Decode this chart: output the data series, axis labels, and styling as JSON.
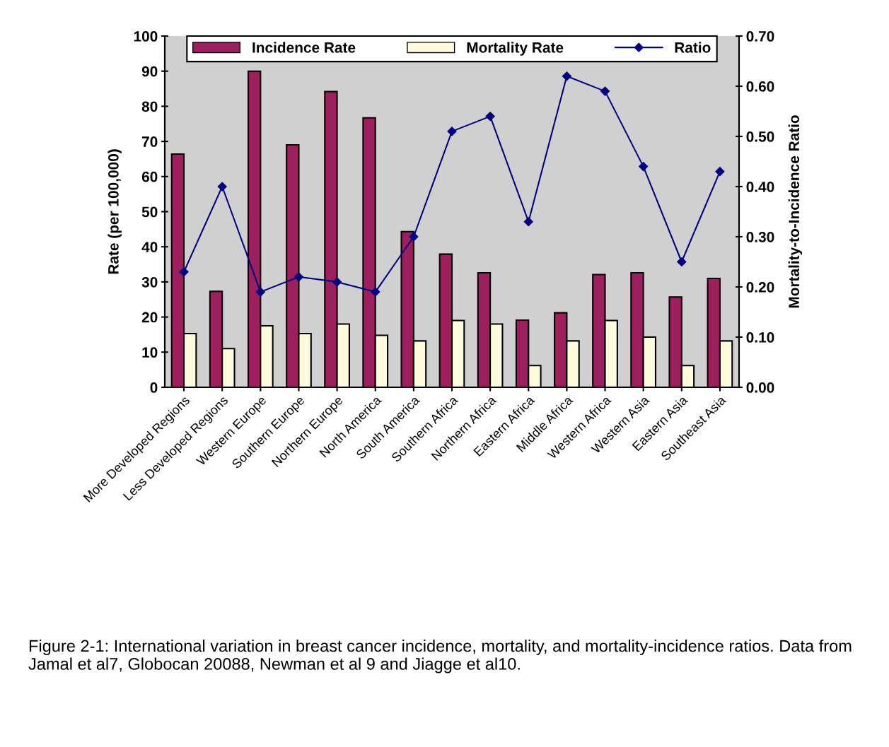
{
  "chart_data": {
    "type": "bar",
    "categories": [
      "More Developed Regions",
      "Less Developed Regions",
      "Western Europe",
      "Southern Europe",
      "Northern Europe",
      "North America",
      "South America",
      "Southern Africa",
      "Northern Africa",
      "Eastern Africa",
      "Middle Africa",
      "Western Africa",
      "Western Asia",
      "Eastern Asia",
      "Southeast Asia"
    ],
    "series": [
      {
        "name": "Incidence Rate",
        "color": "#9e1f5e",
        "values": [
          66.4,
          27.3,
          90,
          69,
          84.2,
          76.7,
          44.3,
          37.9,
          32.6,
          19.1,
          21.2,
          32.1,
          32.6,
          25.7,
          31.0
        ]
      },
      {
        "name": "Mortality Rate",
        "color": "#fffbdc",
        "values": [
          15.3,
          11.0,
          17.5,
          15.3,
          18.0,
          14.8,
          13.2,
          19.0,
          18.0,
          6.2,
          13.2,
          19.0,
          14.3,
          6.2,
          13.2
        ]
      },
      {
        "name": "Ratio",
        "type": "line",
        "axis": "y2",
        "color": "#000080",
        "marker": "diamond",
        "values": [
          0.23,
          0.4,
          0.19,
          0.22,
          0.21,
          0.19,
          0.3,
          0.51,
          0.54,
          0.33,
          0.62,
          0.59,
          0.44,
          0.25,
          0.43
        ]
      }
    ],
    "ylabel": "Rate (per 100,000)",
    "y2label": "Mortality-to-Incidence Ratio",
    "ylim": [
      0,
      100
    ],
    "yticks": [
      0,
      10,
      20,
      30,
      40,
      50,
      60,
      70,
      80,
      90,
      100
    ],
    "y2lim": [
      0,
      0.7
    ],
    "y2ticks": [
      {
        "value": 0,
        "label": "0.00"
      },
      {
        "value": 0.1,
        "label": "0.10"
      },
      {
        "value": 0.2,
        "label": "0.20"
      },
      {
        "value": 0.3,
        "label": "0.30"
      },
      {
        "value": 0.4,
        "label": "0.40"
      },
      {
        "value": 0.5,
        "label": "0.50"
      },
      {
        "value": 0.6,
        "label": "0.60"
      },
      {
        "value": 0.7,
        "label": "0.70"
      }
    ],
    "legend": "top",
    "grid": false,
    "annotations": [
      "Figure 2-1: International variation in breast cancer incidence, mortality, and mortality-incidence ratios. Data from Jamal et al7, Globocan 20088, Newman et al 9 and Jiagge et al10."
    ]
  }
}
